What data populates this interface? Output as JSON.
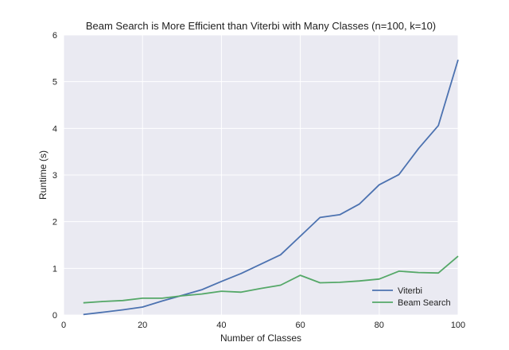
{
  "chart_data": {
    "type": "line",
    "title": "Beam Search is More Efficient than Viterbi with Many Classes (n=100, k=10)",
    "xlabel": "Number of Classes",
    "ylabel": "Runtime (s)",
    "xlim": [
      0,
      100
    ],
    "ylim": [
      0,
      6
    ],
    "xticks": [
      0,
      20,
      40,
      60,
      80,
      100
    ],
    "yticks": [
      0,
      1,
      2,
      3,
      4,
      5,
      6
    ],
    "grid": true,
    "legend_position": "bottom-right",
    "x": [
      5,
      10,
      15,
      20,
      25,
      30,
      35,
      40,
      45,
      50,
      55,
      60,
      65,
      70,
      75,
      80,
      85,
      90,
      95,
      100
    ],
    "series": [
      {
        "name": "Viterbi",
        "color": "#4c72b0",
        "values": [
          0.01,
          0.06,
          0.11,
          0.17,
          0.3,
          0.42,
          0.54,
          0.72,
          0.89,
          1.09,
          1.29,
          1.69,
          2.09,
          2.15,
          2.38,
          2.79,
          3.01,
          3.57,
          4.06,
          5.47
        ]
      },
      {
        "name": "Beam Search",
        "color": "#55a868",
        "values": [
          0.26,
          0.29,
          0.31,
          0.36,
          0.36,
          0.41,
          0.45,
          0.51,
          0.49,
          0.57,
          0.64,
          0.85,
          0.69,
          0.7,
          0.73,
          0.77,
          0.94,
          0.91,
          0.9,
          1.26
        ]
      }
    ]
  }
}
